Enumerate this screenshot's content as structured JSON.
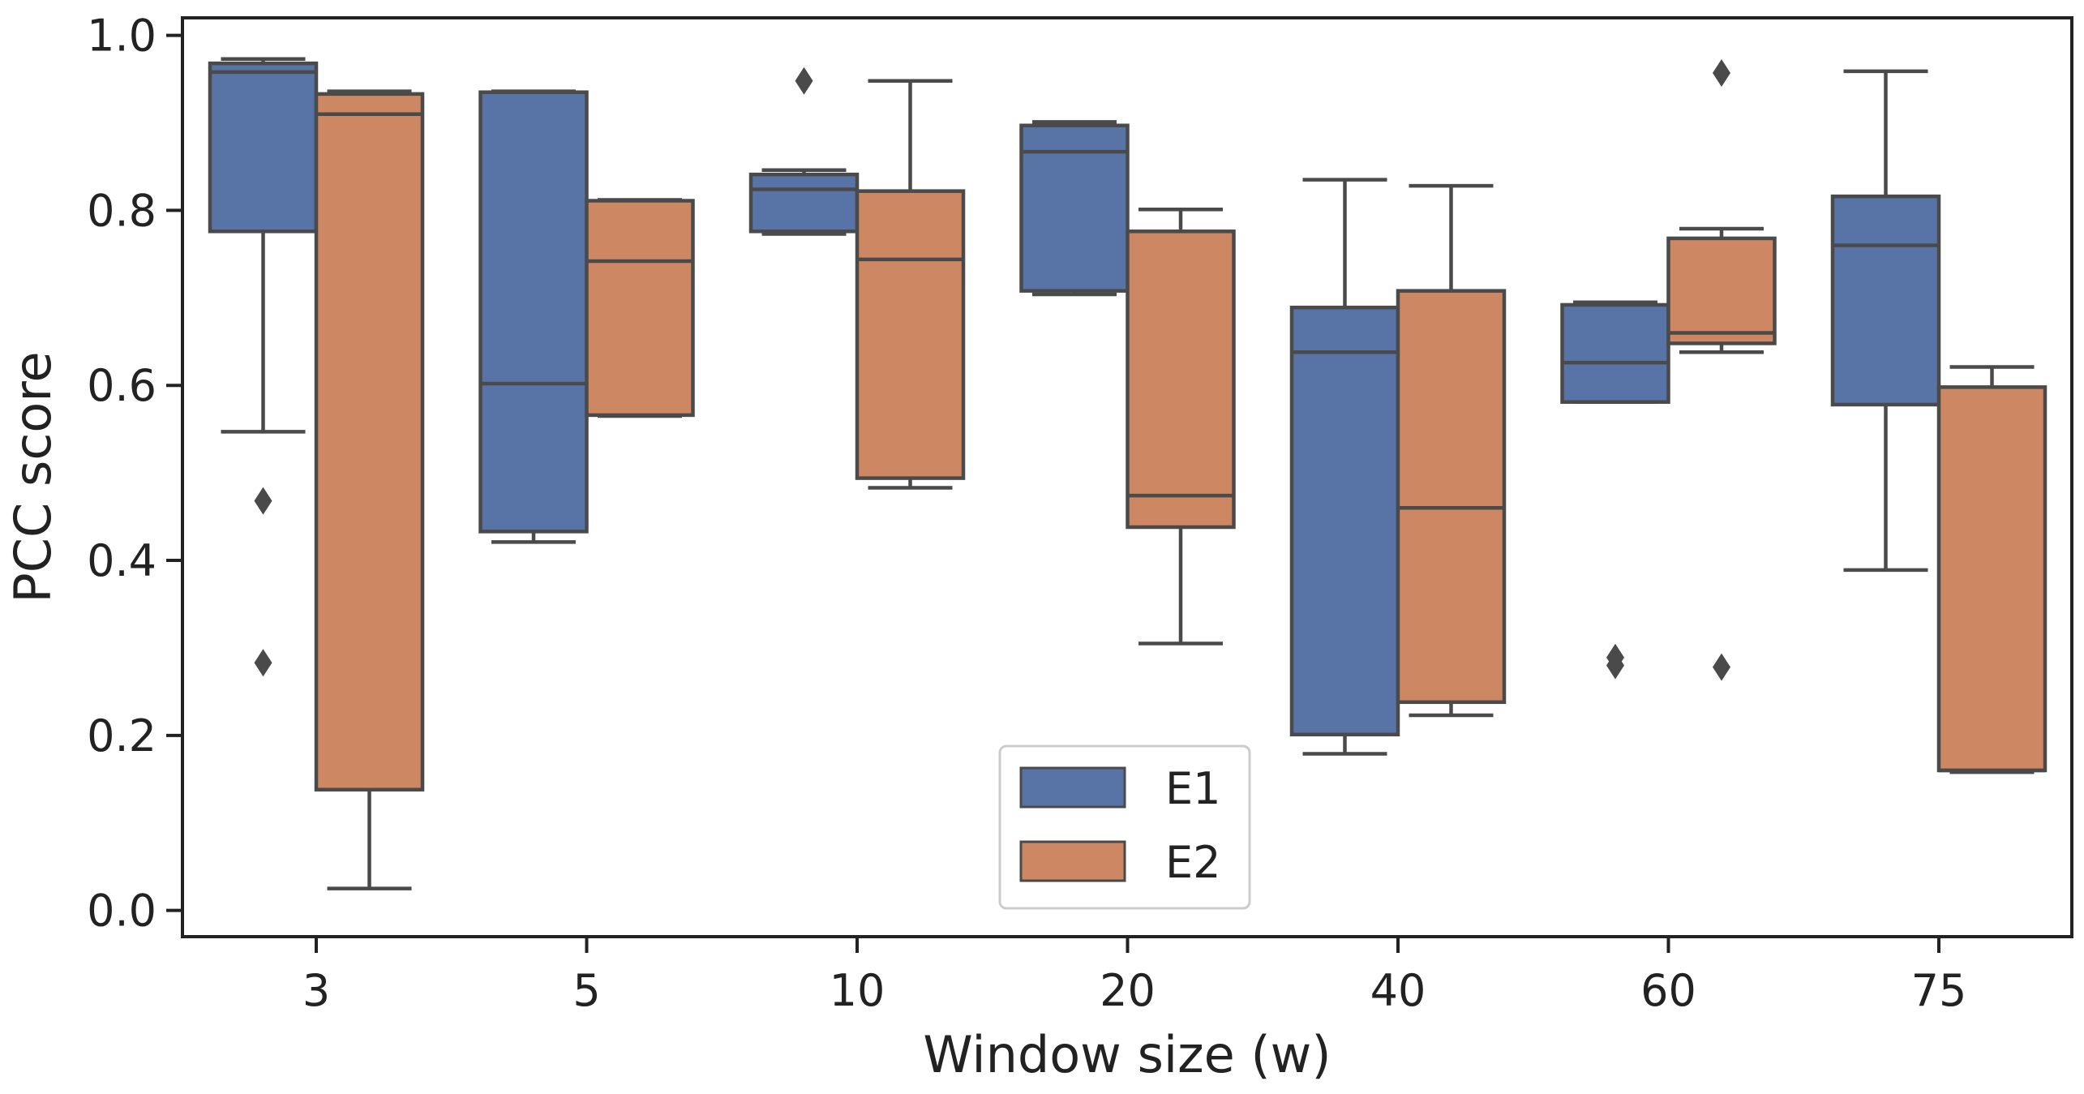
{
  "chart_data": {
    "type": "box",
    "title": "",
    "xlabel": "Window size (w)",
    "ylabel": "PCC score",
    "ylim": [
      -0.03,
      1.02
    ],
    "yticks": [
      "0.0",
      "0.2",
      "0.4",
      "0.6",
      "0.8",
      "1.0"
    ],
    "ytick_values": [
      0.0,
      0.2,
      0.4,
      0.6,
      0.8,
      1.0
    ],
    "categories": [
      "3",
      "5",
      "10",
      "20",
      "40",
      "60",
      "75"
    ],
    "legend": {
      "location": "bottom-center",
      "entries": [
        "E1",
        "E2"
      ]
    },
    "colors": {
      "E1": "#5874a6",
      "E2": "#cd8762",
      "line": "#4a4a4a",
      "axis": "#222222"
    },
    "series": [
      {
        "name": "E1",
        "boxes": [
          {
            "category": "3",
            "whislo": 0.547,
            "q1": 0.776,
            "median": 0.958,
            "q3": 0.968,
            "whishi": 0.973,
            "fliers": [
              0.468,
              0.283
            ]
          },
          {
            "category": "5",
            "whislo": 0.421,
            "q1": 0.433,
            "median": 0.602,
            "q3": 0.935,
            "whishi": 0.936,
            "fliers": []
          },
          {
            "category": "10",
            "whislo": 0.773,
            "q1": 0.776,
            "median": 0.824,
            "q3": 0.841,
            "whishi": 0.846,
            "fliers": [
              0.948
            ]
          },
          {
            "category": "20",
            "whislo": 0.704,
            "q1": 0.708,
            "median": 0.867,
            "q3": 0.897,
            "whishi": 0.901,
            "fliers": []
          },
          {
            "category": "40",
            "whislo": 0.179,
            "q1": 0.201,
            "median": 0.638,
            "q3": 0.689,
            "whishi": 0.835,
            "fliers": []
          },
          {
            "category": "60",
            "whislo": 0.581,
            "q1": 0.581,
            "median": 0.626,
            "q3": 0.692,
            "whishi": 0.695,
            "fliers": [
              0.289,
              0.28
            ]
          },
          {
            "category": "75",
            "whislo": 0.389,
            "q1": 0.578,
            "median": 0.76,
            "q3": 0.816,
            "whishi": 0.959,
            "fliers": []
          }
        ]
      },
      {
        "name": "E2",
        "boxes": [
          {
            "category": "3",
            "whislo": 0.025,
            "q1": 0.138,
            "median": 0.91,
            "q3": 0.933,
            "whishi": 0.936,
            "fliers": []
          },
          {
            "category": "5",
            "whislo": 0.565,
            "q1": 0.566,
            "median": 0.742,
            "q3": 0.811,
            "whishi": 0.812,
            "fliers": []
          },
          {
            "category": "10",
            "whislo": 0.483,
            "q1": 0.494,
            "median": 0.744,
            "q3": 0.822,
            "whishi": 0.948,
            "fliers": []
          },
          {
            "category": "20",
            "whislo": 0.305,
            "q1": 0.438,
            "median": 0.474,
            "q3": 0.776,
            "whishi": 0.801,
            "fliers": []
          },
          {
            "category": "40",
            "whislo": 0.223,
            "q1": 0.238,
            "median": 0.46,
            "q3": 0.708,
            "whishi": 0.828,
            "fliers": []
          },
          {
            "category": "60",
            "whislo": 0.638,
            "q1": 0.648,
            "median": 0.66,
            "q3": 0.768,
            "whishi": 0.779,
            "fliers": [
              0.957,
              0.278
            ]
          },
          {
            "category": "75",
            "whislo": 0.158,
            "q1": 0.16,
            "median": 0.16,
            "q3": 0.598,
            "whishi": 0.621,
            "fliers": []
          }
        ]
      }
    ]
  }
}
